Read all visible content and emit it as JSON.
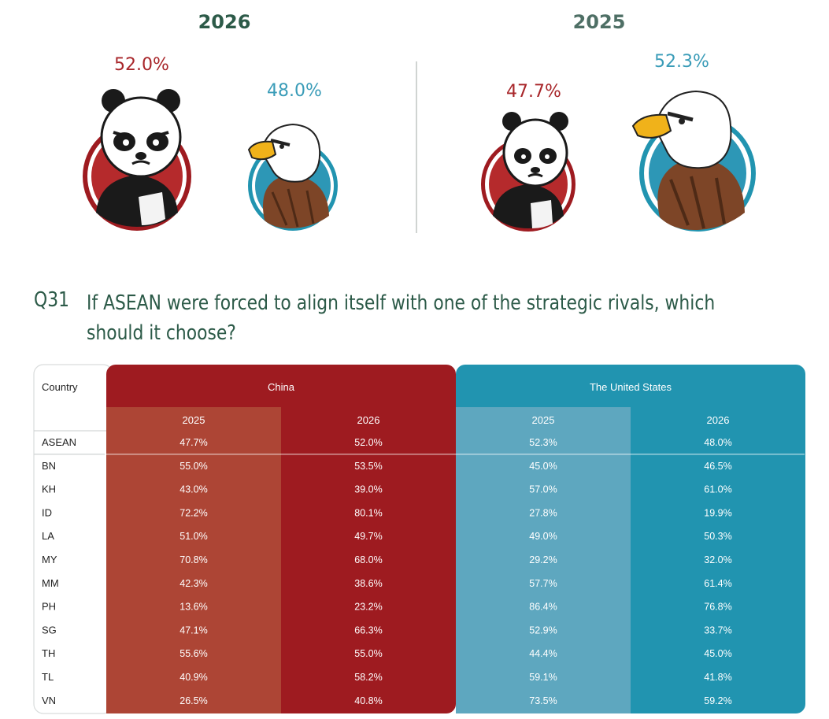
{
  "years": {
    "left": "2026",
    "right": "2025"
  },
  "panel_2026": {
    "china_pct": "52.0%",
    "us_pct": "48.0%"
  },
  "panel_2025": {
    "china_pct": "47.7%",
    "us_pct": "52.3%"
  },
  "question": {
    "number": "Q31",
    "line1": "If ASEAN were forced to align itself with one of the strategic rivals, which",
    "line2": "should it choose?"
  },
  "colors": {
    "china_dark": "#9e1b20",
    "china_light": "#ad4535",
    "us_dark": "#2194b0",
    "us_light": "#5ea7bf",
    "heading_green": "#2c5a48"
  },
  "icons": {
    "china": "panda-icon",
    "us": "eagle-icon"
  },
  "chart_data": {
    "type": "table",
    "country_header": "Country",
    "groups": [
      {
        "name": "China",
        "years": [
          "2025",
          "2026"
        ]
      },
      {
        "name": "The United States",
        "years": [
          "2025",
          "2026"
        ]
      }
    ],
    "rows": [
      {
        "country": "ASEAN",
        "values": [
          "47.7%",
          "52.0%",
          "52.3%",
          "48.0%"
        ]
      },
      {
        "country": "BN",
        "values": [
          "55.0%",
          "53.5%",
          "45.0%",
          "46.5%"
        ]
      },
      {
        "country": "KH",
        "values": [
          "43.0%",
          "39.0%",
          "57.0%",
          "61.0%"
        ]
      },
      {
        "country": "ID",
        "values": [
          "72.2%",
          "80.1%",
          "27.8%",
          "19.9%"
        ]
      },
      {
        "country": "LA",
        "values": [
          "51.0%",
          "49.7%",
          "49.0%",
          "50.3%"
        ]
      },
      {
        "country": "MY",
        "values": [
          "70.8%",
          "68.0%",
          "29.2%",
          "32.0%"
        ]
      },
      {
        "country": "MM",
        "values": [
          "42.3%",
          "38.6%",
          "57.7%",
          "61.4%"
        ]
      },
      {
        "country": "PH",
        "values": [
          "13.6%",
          "23.2%",
          "86.4%",
          "76.8%"
        ]
      },
      {
        "country": "SG",
        "values": [
          "47.1%",
          "66.3%",
          "52.9%",
          "33.7%"
        ]
      },
      {
        "country": "TH",
        "values": [
          "55.6%",
          "55.0%",
          "44.4%",
          "45.0%"
        ]
      },
      {
        "country": "TL",
        "values": [
          "40.9%",
          "58.2%",
          "59.1%",
          "41.8%"
        ]
      },
      {
        "country": "VN",
        "values": [
          "26.5%",
          "40.8%",
          "73.5%",
          "59.2%"
        ]
      }
    ]
  }
}
